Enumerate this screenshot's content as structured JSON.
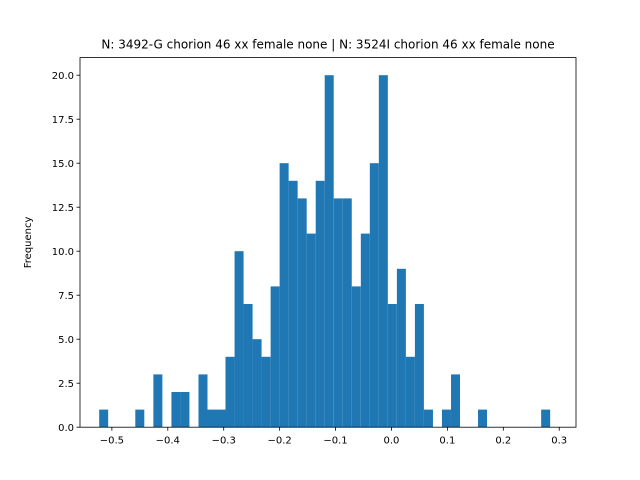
{
  "chart_data": {
    "type": "bar",
    "title": "N: 3492-G chorion 46 xx female none | N: 3524I chorion 46 xx female none",
    "xlabel": "",
    "ylabel": "Frequency",
    "xlim": [
      -0.557,
      0.33
    ],
    "ylim": [
      0,
      21.0
    ],
    "grid": false,
    "bar_color": "#1f77b4",
    "bin_width": 0.0161,
    "x_ticks": [
      -0.5,
      -0.4,
      -0.3,
      -0.2,
      -0.1,
      0.0,
      0.1,
      0.2,
      0.3
    ],
    "x_tick_labels": [
      "−0.5",
      "−0.4",
      "−0.3",
      "−0.2",
      "−0.1",
      "0.0",
      "0.1",
      "0.2",
      "0.3"
    ],
    "y_ticks": [
      0,
      2.5,
      5,
      7.5,
      10,
      12.5,
      15,
      17.5,
      20
    ],
    "y_tick_labels": [
      "0.0",
      "2.5",
      "5.0",
      "7.5",
      "10.0",
      "12.5",
      "15.0",
      "17.5",
      "20.0"
    ],
    "bins": [
      {
        "x0": -0.5227,
        "count": 1
      },
      {
        "x0": -0.4581,
        "count": 1
      },
      {
        "x0": -0.4258,
        "count": 3
      },
      {
        "x0": -0.3935,
        "count": 2
      },
      {
        "x0": -0.3774,
        "count": 2
      },
      {
        "x0": -0.3451,
        "count": 3
      },
      {
        "x0": -0.329,
        "count": 1
      },
      {
        "x0": -0.3129,
        "count": 1
      },
      {
        "x0": -0.2968,
        "count": 4
      },
      {
        "x0": -0.2806,
        "count": 10
      },
      {
        "x0": -0.2645,
        "count": 7
      },
      {
        "x0": -0.2484,
        "count": 5
      },
      {
        "x0": -0.2323,
        "count": 4
      },
      {
        "x0": -0.2161,
        "count": 8
      },
      {
        "x0": -0.2,
        "count": 15
      },
      {
        "x0": -0.1839,
        "count": 14
      },
      {
        "x0": -0.1677,
        "count": 13
      },
      {
        "x0": -0.1516,
        "count": 11
      },
      {
        "x0": -0.1355,
        "count": 14
      },
      {
        "x0": -0.1194,
        "count": 20
      },
      {
        "x0": -0.1032,
        "count": 13
      },
      {
        "x0": -0.0871,
        "count": 13
      },
      {
        "x0": -0.071,
        "count": 8
      },
      {
        "x0": -0.0548,
        "count": 11
      },
      {
        "x0": -0.0387,
        "count": 15
      },
      {
        "x0": -0.0226,
        "count": 20
      },
      {
        "x0": -0.0065,
        "count": 7
      },
      {
        "x0": 0.0097,
        "count": 9
      },
      {
        "x0": 0.0258,
        "count": 4
      },
      {
        "x0": 0.0419,
        "count": 7
      },
      {
        "x0": 0.0581,
        "count": 1
      },
      {
        "x0": 0.0903,
        "count": 1
      },
      {
        "x0": 0.1065,
        "count": 3
      },
      {
        "x0": 0.1548,
        "count": 1
      },
      {
        "x0": 0.2677,
        "count": 1
      }
    ]
  }
}
